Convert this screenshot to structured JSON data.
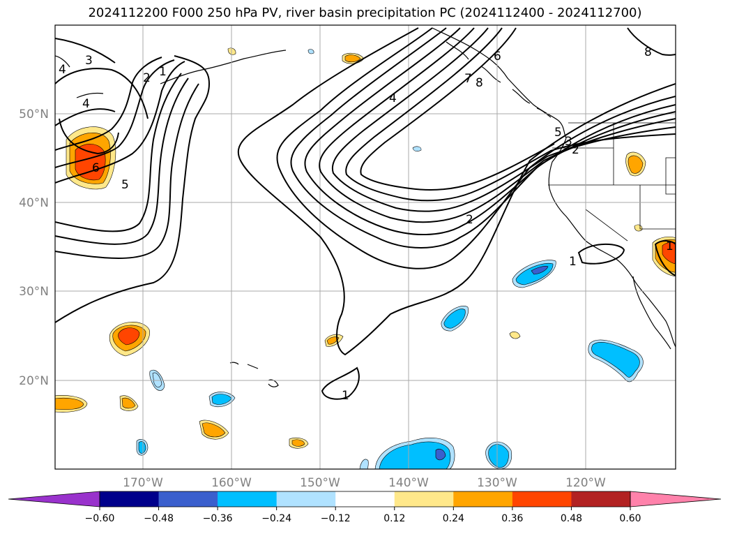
{
  "title": "2024112200 F000 250 hPa PV, river basin precipitation PC (2024112400 - 2024112700)",
  "lat_labels": [
    "50°N",
    "40°N",
    "30°N",
    "20°N"
  ],
  "lon_labels": [
    "170°W",
    "160°W",
    "150°W",
    "140°W",
    "130°W",
    "120°W"
  ],
  "pv_contour_labels": [
    "3",
    "2",
    "1",
    "4",
    "4",
    "6",
    "5",
    "4",
    "2",
    "6",
    "7",
    "8",
    "5",
    "3",
    "2",
    "1",
    "1",
    "8",
    "1"
  ],
  "colorbar": {
    "ticks": [
      "−0.60",
      "−0.48",
      "−0.36",
      "−0.24",
      "−0.12",
      "0.12",
      "0.24",
      "0.36",
      "0.48",
      "0.60"
    ],
    "colors": [
      "#9932cc",
      "#00008b",
      "#3a5fcd",
      "#00bfff",
      "#b0e2ff",
      "#ffffff",
      "#ffe88a",
      "#ffa500",
      "#ff4500",
      "#b22222",
      "#ff82ab"
    ]
  },
  "precip_colors": {
    "pos_low": "#ffe88a",
    "pos_mid": "#ffa500",
    "pos_high": "#ff4500",
    "neg_low": "#b0e2ff",
    "neg_mid": "#00bfff",
    "neg_high": "#3a5fcd"
  }
}
